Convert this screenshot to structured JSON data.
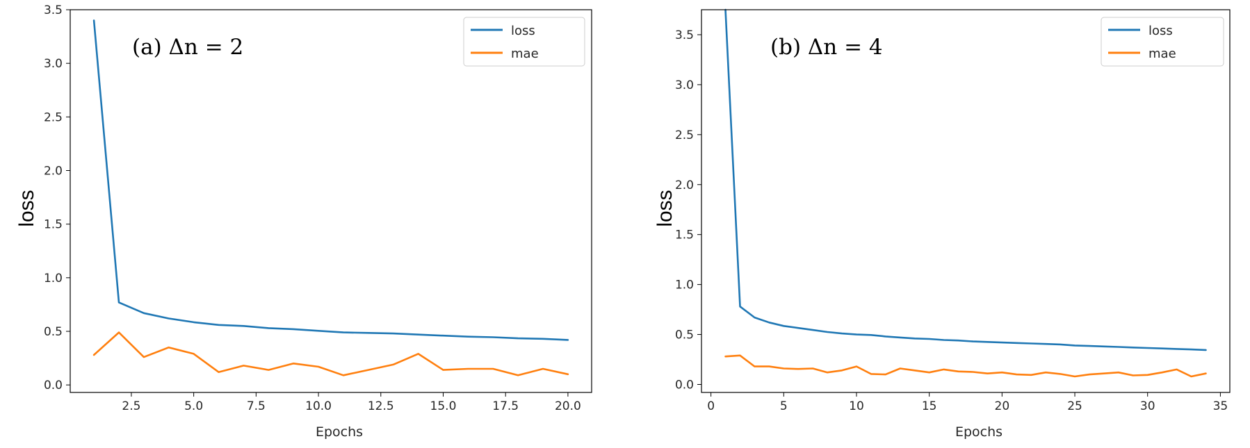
{
  "colors": {
    "loss": "#1f77b4",
    "mae": "#ff7f0e",
    "axis": "#000000",
    "legend_border": "#cccccc"
  },
  "chart_data": [
    {
      "type": "line",
      "annotation": "(a) Δn = 2",
      "xlabel": "Epochs",
      "ylabel": "loss",
      "xlim": [
        0.05,
        20.95
      ],
      "ylim": [
        -0.07,
        3.5
      ],
      "xticks": [
        2.5,
        5.0,
        7.5,
        10.0,
        12.5,
        15.0,
        17.5,
        20.0
      ],
      "xtick_labels": [
        "2.5",
        "5.0",
        "7.5",
        "10.0",
        "12.5",
        "15.0",
        "17.5",
        "20.0"
      ],
      "yticks": [
        0.0,
        0.5,
        1.0,
        1.5,
        2.0,
        2.5,
        3.0,
        3.5
      ],
      "ytick_labels": [
        "0.0",
        "0.5",
        "1.0",
        "1.5",
        "2.0",
        "2.5",
        "3.0",
        "3.5"
      ],
      "legend_position": "top-right",
      "grid": false,
      "x": [
        1,
        2,
        3,
        4,
        5,
        6,
        7,
        8,
        9,
        10,
        11,
        12,
        13,
        14,
        15,
        16,
        17,
        18,
        19,
        20
      ],
      "series": [
        {
          "name": "loss",
          "values": [
            3.4,
            0.77,
            0.67,
            0.62,
            0.585,
            0.56,
            0.55,
            0.53,
            0.52,
            0.505,
            0.49,
            0.485,
            0.48,
            0.47,
            0.46,
            0.45,
            0.445,
            0.435,
            0.43,
            0.42
          ]
        },
        {
          "name": "mae",
          "values": [
            0.28,
            0.49,
            0.26,
            0.35,
            0.29,
            0.12,
            0.18,
            0.14,
            0.2,
            0.17,
            0.09,
            0.14,
            0.19,
            0.29,
            0.14,
            0.15,
            0.15,
            0.09,
            0.15,
            0.1
          ]
        }
      ]
    },
    {
      "type": "line",
      "annotation": "(b) Δn = 4",
      "xlabel": "Epochs",
      "ylabel": "loss",
      "xlim": [
        -0.65,
        35.65
      ],
      "ylim": [
        -0.08,
        3.75
      ],
      "xticks": [
        0,
        5,
        10,
        15,
        20,
        25,
        30,
        35
      ],
      "xtick_labels": [
        "0",
        "5",
        "10",
        "15",
        "20",
        "25",
        "30",
        "35"
      ],
      "yticks": [
        0.0,
        0.5,
        1.0,
        1.5,
        2.0,
        2.5,
        3.0,
        3.5
      ],
      "ytick_labels": [
        "0.0",
        "0.5",
        "1.0",
        "1.5",
        "2.0",
        "2.5",
        "3.0",
        "3.5"
      ],
      "legend_position": "top-right",
      "grid": false,
      "x": [
        1,
        2,
        3,
        4,
        5,
        6,
        7,
        8,
        9,
        10,
        11,
        12,
        13,
        14,
        15,
        16,
        17,
        18,
        19,
        20,
        21,
        22,
        23,
        24,
        25,
        26,
        27,
        28,
        29,
        30,
        31,
        32,
        33,
        34
      ],
      "series": [
        {
          "name": "loss",
          "values": [
            3.75,
            0.78,
            0.67,
            0.62,
            0.585,
            0.565,
            0.545,
            0.525,
            0.51,
            0.5,
            0.495,
            0.48,
            0.47,
            0.46,
            0.455,
            0.445,
            0.44,
            0.43,
            0.425,
            0.42,
            0.415,
            0.41,
            0.405,
            0.4,
            0.39,
            0.385,
            0.38,
            0.375,
            0.37,
            0.365,
            0.36,
            0.355,
            0.35,
            0.345
          ]
        },
        {
          "name": "mae",
          "values": [
            0.28,
            0.29,
            0.18,
            0.18,
            0.16,
            0.155,
            0.16,
            0.12,
            0.14,
            0.18,
            0.105,
            0.1,
            0.16,
            0.14,
            0.12,
            0.15,
            0.13,
            0.125,
            0.11,
            0.12,
            0.1,
            0.095,
            0.12,
            0.105,
            0.08,
            0.1,
            0.11,
            0.12,
            0.09,
            0.095,
            0.12,
            0.15,
            0.08,
            0.11
          ]
        }
      ]
    }
  ]
}
